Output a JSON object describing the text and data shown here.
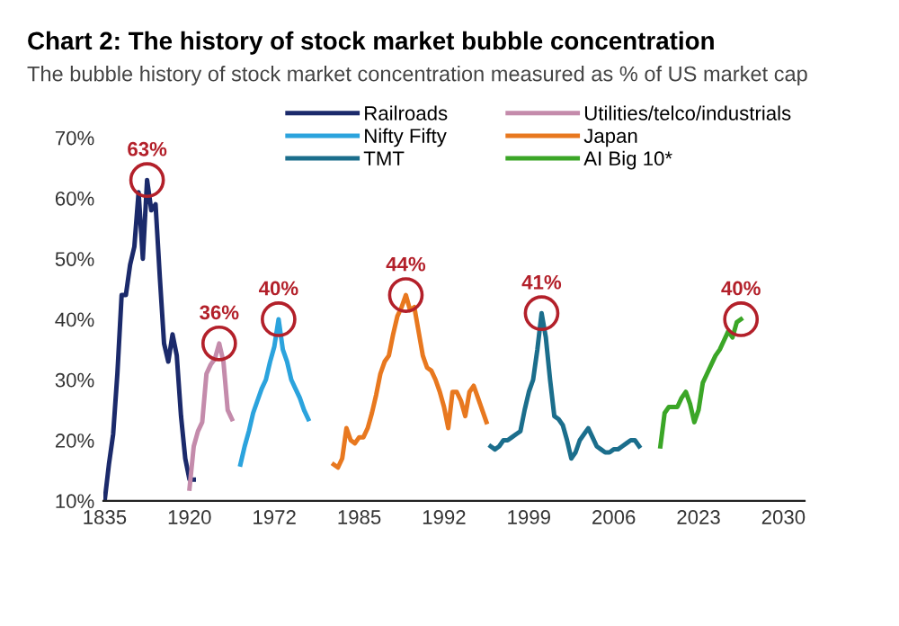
{
  "chart_data": {
    "type": "line",
    "title": "Chart 2: The history of stock market bubble concentration",
    "subtitle": "The bubble history of stock market concentration measured as % of US market cap",
    "categories": [
      "1835",
      null,
      null,
      null,
      null,
      null,
      null,
      null,
      null,
      null,
      null,
      null,
      null,
      null,
      null,
      null,
      null,
      null,
      null,
      null,
      "1920",
      null,
      null,
      null,
      null,
      null,
      null,
      null,
      null,
      null,
      null,
      null,
      null,
      null,
      null,
      null,
      null,
      null,
      null,
      null,
      "1972",
      null,
      null,
      null,
      null,
      null,
      null,
      null,
      null,
      null,
      null,
      null,
      null,
      null,
      null,
      null,
      null,
      null,
      null,
      null,
      "1985",
      null,
      null,
      null,
      null,
      null,
      null,
      null,
      null,
      null,
      null,
      null,
      null,
      null,
      null,
      null,
      null,
      null,
      null,
      null,
      "1992",
      null,
      null,
      null,
      null,
      null,
      null,
      null,
      null,
      null,
      null,
      null,
      null,
      null,
      null,
      null,
      null,
      null,
      null,
      null,
      "1999",
      null,
      null,
      null,
      null,
      null,
      null,
      null,
      null,
      null,
      null,
      null,
      null,
      null,
      null,
      null,
      null,
      null,
      null,
      null,
      "2006",
      null,
      null,
      null,
      null,
      null,
      null,
      null,
      null,
      null,
      null,
      null,
      null,
      null,
      null,
      null,
      null,
      null,
      null,
      null,
      "2023",
      null,
      null,
      null,
      null,
      null,
      null,
      null,
      null,
      null,
      null,
      null,
      null,
      null,
      null,
      null,
      null,
      null,
      null,
      null,
      "2030",
      null,
      null,
      null,
      null,
      null
    ],
    "ylim": [
      10,
      70
    ],
    "yticks": [
      {
        "value": 10,
        "label": "10%"
      },
      {
        "value": 20,
        "label": "20%"
      },
      {
        "value": 30,
        "label": "30%"
      },
      {
        "value": 40,
        "label": "40%"
      },
      {
        "value": 50,
        "label": "50%"
      },
      {
        "value": 60,
        "label": "60%"
      },
      {
        "value": 70,
        "label": "70%"
      }
    ],
    "grid": false,
    "legend": "top",
    "marker": "none",
    "line_style": "solid",
    "series": [
      {
        "name": "Railroads",
        "color": "#1b2a6b",
        "values": [
          10,
          16,
          21,
          31,
          44,
          44,
          49,
          52,
          61,
          50,
          63,
          58,
          59,
          47,
          36,
          33,
          37.5,
          34,
          24,
          17,
          13.5,
          13.5,
          null,
          null,
          null,
          null,
          null,
          null,
          null,
          null,
          null,
          null,
          null,
          null,
          null,
          null,
          null,
          null,
          null,
          null,
          null,
          null,
          null,
          null,
          null,
          null,
          null,
          null,
          null,
          null,
          null,
          null,
          null,
          null,
          null,
          null,
          null,
          null,
          null,
          null,
          null,
          null,
          null,
          null,
          null,
          null,
          null,
          null,
          null,
          null,
          null,
          null,
          null,
          null,
          null,
          null,
          null,
          null,
          null,
          null,
          null,
          null,
          null,
          null,
          null,
          null,
          null,
          null,
          null,
          null,
          null,
          null,
          null,
          null,
          null,
          null,
          null,
          null,
          null,
          null,
          null,
          null,
          null,
          null,
          null,
          null,
          null,
          null,
          null,
          null,
          null,
          null,
          null,
          null,
          null,
          null,
          null,
          null,
          null,
          null,
          null,
          null,
          null,
          null,
          null,
          null,
          null,
          null,
          null,
          null,
          null,
          null,
          null,
          null,
          null,
          null,
          null,
          null,
          null,
          null,
          null,
          null,
          null,
          null,
          null,
          null,
          null,
          null,
          null,
          null,
          null,
          null,
          null,
          null,
          null,
          null,
          null,
          null,
          null,
          null,
          null,
          null,
          null,
          null,
          null,
          null
        ]
      },
      {
        "name": "Utilities/telco/industrials",
        "color": "#c48bab",
        "values": [
          null,
          null,
          null,
          null,
          null,
          null,
          null,
          null,
          null,
          null,
          null,
          null,
          null,
          null,
          null,
          null,
          null,
          null,
          null,
          null,
          12,
          19,
          21.5,
          23,
          31,
          32.5,
          33.5,
          36,
          33,
          25,
          23.5,
          null,
          null,
          null,
          null,
          null,
          null,
          null,
          null,
          null,
          null,
          null,
          null,
          null,
          null,
          null,
          null,
          null,
          null,
          null,
          null,
          null,
          null,
          null,
          null,
          null,
          null,
          null,
          null,
          null,
          null,
          null,
          null,
          null,
          null,
          null,
          null,
          null,
          null,
          null,
          null,
          null,
          null,
          null,
          null,
          null,
          null,
          null,
          null,
          null,
          null,
          null,
          null,
          null,
          null,
          null,
          null,
          null,
          null,
          null,
          null,
          null,
          null,
          null,
          null,
          null,
          null,
          null,
          null,
          null,
          null,
          null,
          null,
          null,
          null,
          null,
          null,
          null,
          null,
          null,
          null,
          null,
          null,
          null,
          null,
          null,
          null,
          null,
          null,
          null,
          null,
          null,
          null,
          null,
          null,
          null,
          null,
          null,
          null,
          null,
          null,
          null,
          null,
          null,
          null,
          null,
          null,
          null,
          null,
          null,
          null,
          null,
          null,
          null,
          null,
          null,
          null,
          null,
          null,
          null,
          null,
          null,
          null,
          null,
          null,
          null,
          null,
          null,
          null,
          null,
          null,
          null,
          null,
          null,
          null,
          null
        ]
      },
      {
        "name": "Nifty Fifty",
        "color": "#2ba3dd",
        "values": [
          null,
          null,
          null,
          null,
          null,
          null,
          null,
          null,
          null,
          null,
          null,
          null,
          null,
          null,
          null,
          null,
          null,
          null,
          null,
          null,
          null,
          null,
          null,
          null,
          null,
          null,
          null,
          null,
          null,
          null,
          null,
          null,
          16,
          19,
          21.5,
          24.5,
          26.5,
          28.5,
          30,
          33,
          35.5,
          40,
          35,
          33,
          30,
          28.5,
          27,
          25,
          23.5,
          null,
          null,
          null,
          null,
          null,
          null,
          null,
          null,
          null,
          null,
          null,
          null,
          null,
          null,
          null,
          null,
          null,
          null,
          null,
          null,
          null,
          null,
          null,
          null,
          null,
          null,
          null,
          null,
          null,
          null,
          null,
          null,
          null,
          null,
          null,
          null,
          null,
          null,
          null,
          null,
          null,
          null,
          null,
          null,
          null,
          null,
          null,
          null,
          null,
          null,
          null,
          null,
          null,
          null,
          null,
          null,
          null,
          null,
          null,
          null,
          null,
          null,
          null,
          null,
          null,
          null,
          null,
          null,
          null,
          null,
          null,
          null,
          null,
          null,
          null,
          null,
          null,
          null,
          null,
          null,
          null,
          null,
          null,
          null,
          null,
          null,
          null,
          null,
          null,
          null,
          null,
          null,
          null,
          null,
          null,
          null,
          null,
          null,
          null,
          null,
          null,
          null,
          null,
          null,
          null,
          null,
          null,
          null,
          null,
          null,
          null,
          null,
          null,
          null,
          null,
          null,
          null
        ]
      },
      {
        "name": "Japan",
        "color": "#e8781f",
        "values": [
          null,
          null,
          null,
          null,
          null,
          null,
          null,
          null,
          null,
          null,
          null,
          null,
          null,
          null,
          null,
          null,
          null,
          null,
          null,
          null,
          null,
          null,
          null,
          null,
          null,
          null,
          null,
          null,
          null,
          null,
          null,
          null,
          null,
          null,
          null,
          null,
          null,
          null,
          null,
          null,
          null,
          null,
          null,
          null,
          null,
          null,
          null,
          null,
          null,
          null,
          null,
          null,
          null,
          null,
          16,
          15.5,
          17,
          22,
          20,
          19.5,
          20.5,
          20.5,
          22,
          24.5,
          27.5,
          31,
          33,
          34,
          37.5,
          40.5,
          42,
          44,
          41.5,
          42,
          38,
          34,
          32,
          31.5,
          30,
          28,
          25.5,
          22,
          28,
          28,
          26.5,
          24,
          28,
          29,
          27,
          25,
          23,
          null,
          null,
          null,
          null,
          null,
          null,
          null,
          null,
          null,
          null,
          null,
          null,
          null,
          null,
          null,
          null,
          null,
          null,
          null,
          null,
          null,
          null,
          null,
          null,
          null,
          null,
          null,
          null,
          null,
          null,
          null,
          null,
          null,
          null,
          null,
          null,
          null,
          null,
          null,
          null,
          null,
          null,
          null,
          null,
          null,
          null,
          null,
          null,
          null,
          null,
          null,
          null,
          null,
          null,
          null,
          null,
          null,
          null,
          null,
          null,
          null,
          null,
          null,
          null,
          null,
          null,
          null,
          null,
          null,
          null,
          null,
          null,
          null,
          null,
          null
        ]
      },
      {
        "name": "TMT",
        "color": "#1b6e8c",
        "values": [
          null,
          null,
          null,
          null,
          null,
          null,
          null,
          null,
          null,
          null,
          null,
          null,
          null,
          null,
          null,
          null,
          null,
          null,
          null,
          null,
          null,
          null,
          null,
          null,
          null,
          null,
          null,
          null,
          null,
          null,
          null,
          null,
          null,
          null,
          null,
          null,
          null,
          null,
          null,
          null,
          null,
          null,
          null,
          null,
          null,
          null,
          null,
          null,
          null,
          null,
          null,
          null,
          null,
          null,
          null,
          null,
          null,
          null,
          null,
          null,
          null,
          null,
          null,
          null,
          null,
          null,
          null,
          null,
          null,
          null,
          null,
          null,
          null,
          null,
          null,
          null,
          null,
          null,
          null,
          null,
          null,
          null,
          null,
          null,
          null,
          null,
          null,
          null,
          null,
          null,
          null,
          19,
          18.5,
          19,
          20,
          20,
          20.5,
          21,
          21.5,
          25,
          28,
          30,
          35,
          41,
          37,
          30,
          24,
          23.5,
          22.5,
          20,
          17,
          18,
          20,
          21,
          22,
          20.5,
          19,
          18.5,
          18,
          18,
          18.5,
          18.5,
          19,
          19.5,
          20,
          20,
          19,
          null,
          null,
          null,
          null,
          null,
          null,
          null,
          null,
          null,
          null,
          null,
          null,
          null,
          null,
          null,
          null,
          null,
          null,
          null,
          null,
          null,
          null,
          null,
          null,
          null,
          null,
          null,
          null,
          null,
          null,
          null,
          null,
          null,
          null,
          null,
          null,
          null,
          null,
          null
        ]
      },
      {
        "name": "AI Big 10*",
        "color": "#3ba627",
        "values": [
          null,
          null,
          null,
          null,
          null,
          null,
          null,
          null,
          null,
          null,
          null,
          null,
          null,
          null,
          null,
          null,
          null,
          null,
          null,
          null,
          null,
          null,
          null,
          null,
          null,
          null,
          null,
          null,
          null,
          null,
          null,
          null,
          null,
          null,
          null,
          null,
          null,
          null,
          null,
          null,
          null,
          null,
          null,
          null,
          null,
          null,
          null,
          null,
          null,
          null,
          null,
          null,
          null,
          null,
          null,
          null,
          null,
          null,
          null,
          null,
          null,
          null,
          null,
          null,
          null,
          null,
          null,
          null,
          null,
          null,
          null,
          null,
          null,
          null,
          null,
          null,
          null,
          null,
          null,
          null,
          null,
          null,
          null,
          null,
          null,
          null,
          null,
          null,
          null,
          null,
          null,
          null,
          null,
          null,
          null,
          null,
          null,
          null,
          null,
          null,
          null,
          null,
          null,
          null,
          null,
          null,
          null,
          null,
          null,
          null,
          null,
          null,
          null,
          null,
          null,
          null,
          null,
          null,
          null,
          null,
          null,
          null,
          null,
          null,
          null,
          null,
          null,
          null,
          null,
          null,
          null,
          19,
          24.5,
          25.5,
          25.5,
          25.5,
          27,
          28,
          26,
          23,
          25,
          29.5,
          31,
          32.5,
          34,
          35,
          36.5,
          38,
          37,
          39.5,
          40,
          null,
          null,
          null,
          null,
          null,
          null,
          null,
          null,
          null,
          null,
          null,
          null,
          null,
          null,
          null
        ]
      }
    ],
    "annotations": [
      "63%",
      "36%",
      "40%",
      "44%",
      "41%",
      "40%"
    ]
  }
}
